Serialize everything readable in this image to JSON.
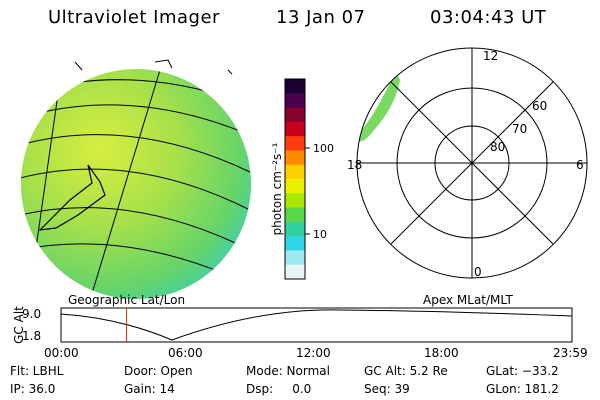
{
  "header": {
    "title": "Ultraviolet Imager",
    "date": "13 Jan 07",
    "time": "03:04:43 UT"
  },
  "left_panel_label": "Geographic Lat/Lon",
  "right_panel_label": "Apex MLat/MLT",
  "colorbar": {
    "unit": "photon cm⁻²s⁻¹",
    "ticks": [
      "100",
      "10"
    ],
    "colors": [
      "#1a0033",
      "#4b0050",
      "#8a0030",
      "#c8001e",
      "#ff3b10",
      "#ff8a00",
      "#ffd000",
      "#e8f000",
      "#a8e800",
      "#5ad84a",
      "#30d0a0",
      "#2fd5e8",
      "#a0e8f0",
      "#e8f4f6"
    ]
  },
  "polar": {
    "mlt_labels": [
      "12",
      "18",
      "6",
      "0"
    ],
    "mlat_labels": [
      "60",
      "70",
      "80"
    ]
  },
  "altitude_plot": {
    "ylabel": "GC Alt",
    "yticks": [
      "9.0",
      "1.8"
    ],
    "xticks": [
      "00:00",
      "06:00",
      "12:00",
      "18:00",
      "23:59"
    ],
    "marker_hour": 3.08
  },
  "footer": {
    "row1": [
      "Flt: LBHL",
      "Door: Open",
      "Mode: Normal",
      "GC Alt: 5.2 Re",
      "GLat: −33.2"
    ],
    "row2": [
      "IP: 36.0",
      "Gain: 14",
      "Dsp:     0.0",
      "Seq: 39",
      "GLon: 181.2"
    ]
  }
}
